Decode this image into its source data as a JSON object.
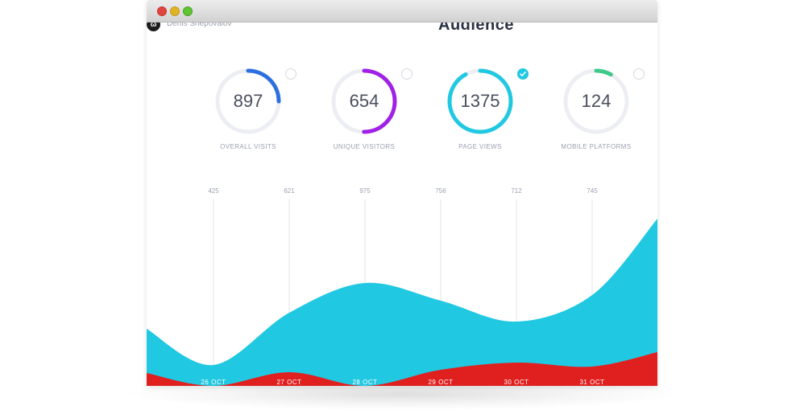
{
  "window": {
    "controls": [
      "close",
      "minimize",
      "maximize"
    ]
  },
  "header": {
    "logo_glyph": "ω",
    "author": "Denis Shepovalov",
    "title": "Audience"
  },
  "stats": [
    {
      "label": "OVERALL VISITS",
      "value": "897",
      "color": "#2d6fe0",
      "progress": 0.25,
      "selected": false
    },
    {
      "label": "UNIQUE VISITORS",
      "value": "654",
      "color": "#a020e8",
      "progress": 0.5,
      "selected": false
    },
    {
      "label": "PAGE VIEWS",
      "value": "1375",
      "color": "#21c8e1",
      "progress": 0.92,
      "selected": true
    },
    {
      "label": "MOBILE PLATFORMS",
      "value": "124",
      "color": "#3ec98a",
      "progress": 0.08,
      "selected": false
    }
  ],
  "chart_data": {
    "type": "area",
    "categories": [
      "26 OCT",
      "27 OCT",
      "28 OCT",
      "29 OCT",
      "30 OCT",
      "31 OCT"
    ],
    "top_values": [
      "425",
      "621",
      "975",
      "756",
      "712",
      "745"
    ],
    "series": [
      {
        "color": "#21c8e1",
        "values": [
          425,
          621,
          975,
          756,
          712,
          745
        ]
      },
      {
        "color": "#e01f1f"
      }
    ],
    "grid": true
  }
}
